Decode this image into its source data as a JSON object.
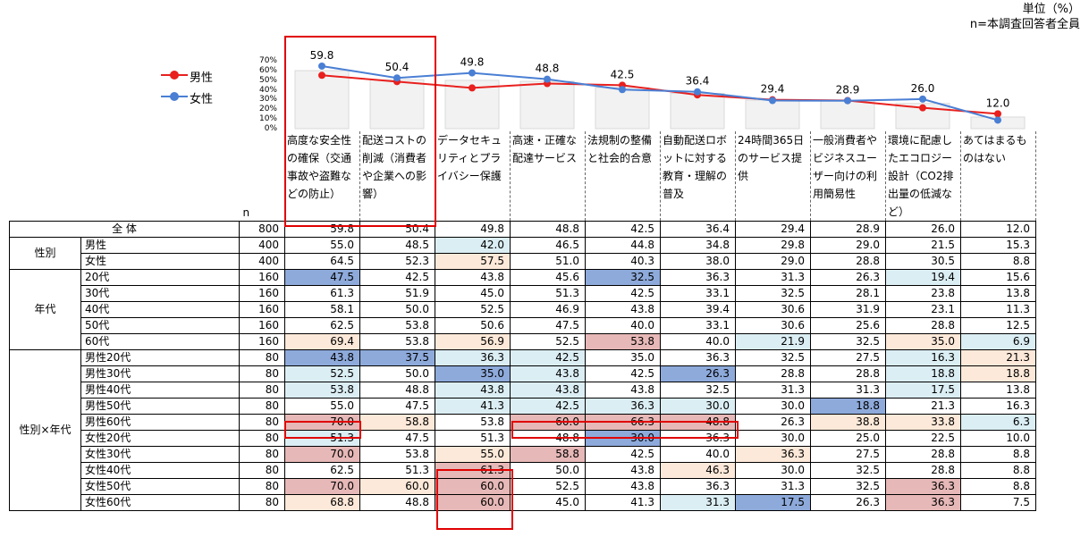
{
  "unit_note": {
    "line1": "単位（%）",
    "line2": "n=本調査回答者全員"
  },
  "legend": [
    {
      "label": "男性",
      "color": "#e8201e"
    },
    {
      "label": "女性",
      "color": "#4a7fd4"
    }
  ],
  "chart_data": {
    "type": "line",
    "yticks": [
      "70%",
      "60%",
      "50%",
      "40%",
      "30%",
      "20%",
      "10%",
      "0%"
    ],
    "ylim": [
      0,
      70
    ],
    "bar_label": "全体",
    "categories": [
      "高度な安全性の確保（交通事故や盗難などの防止）",
      "配送コストの削減（消費者や企業への影響）",
      "データセキュリティとプライバシー保護",
      "高速・正確な配達サービス",
      "法規制の整備と社会的合意",
      "自動配送ロボットに対する教育・理解の普及",
      "24時間365日のサービス提供",
      "一般消費者やビジネスユーザー向けの利用簡易性",
      "環境に配慮したエコロジー設計（CO2排出量の低減など）",
      "あてはまるものはない"
    ],
    "total_values": [
      59.8,
      50.4,
      49.8,
      48.8,
      42.5,
      36.4,
      29.4,
      28.9,
      26.0,
      12.0
    ],
    "total_labels": [
      "59.8",
      "50.4",
      "49.8",
      "48.8",
      "42.5",
      "36.4",
      "29.4",
      "28.9",
      "26.0",
      "12.0"
    ],
    "series": [
      {
        "name": "男性",
        "color": "#e8201e",
        "values": [
          55.0,
          48.5,
          42.0,
          46.5,
          44.8,
          34.8,
          29.8,
          29.0,
          21.5,
          15.3
        ]
      },
      {
        "name": "女性",
        "color": "#4a7fd4",
        "values": [
          64.5,
          52.3,
          57.5,
          51.0,
          40.3,
          38.0,
          29.0,
          28.8,
          30.5,
          8.8
        ]
      }
    ]
  },
  "table": {
    "n_header": "n",
    "headers": [
      "高度な安全性の確保（交通事故や盗難などの防止）",
      "配送コストの削減（消費者や企業への影響）",
      "データセキュリティとプライバシー保護",
      "高速・正確な配達サービス",
      "法規制の整備と社会的合意",
      "自動配送ロボットに対する教育・理解の普及",
      "24時間365日のサービス提供",
      "一般消費者やビジネスユーザー向けの利用簡易性",
      "環境に配慮したエコロジー設計（CO2排出量の低減など）",
      "あてはまるものはない"
    ],
    "colors": {
      "dark_blue": "#8eaadb",
      "light_blue": "#dbeef4",
      "dark_red": "#e6b8b7",
      "light_red": "#fde9d9"
    },
    "total": {
      "label": "全 体",
      "n": "800",
      "values": [
        "59.8",
        "50.4",
        "49.8",
        "48.8",
        "42.5",
        "36.4",
        "29.4",
        "28.9",
        "26.0",
        "12.0"
      ]
    },
    "groups": [
      {
        "label": "性別",
        "rows": [
          {
            "label": "男性",
            "n": "400",
            "values": [
              "55.0",
              "48.5",
              "42.0",
              "46.5",
              "44.8",
              "34.8",
              "29.8",
              "29.0",
              "21.5",
              "15.3"
            ],
            "shades": [
              "",
              "",
              "lb",
              "",
              "",
              "",
              "",
              "",
              "",
              ""
            ]
          },
          {
            "label": "女性",
            "n": "400",
            "values": [
              "64.5",
              "52.3",
              "57.5",
              "51.0",
              "40.3",
              "38.0",
              "29.0",
              "28.8",
              "30.5",
              "8.8"
            ],
            "shades": [
              "",
              "",
              "lr",
              "",
              "",
              "",
              "",
              "",
              "",
              ""
            ]
          }
        ]
      },
      {
        "label": "年代",
        "rows": [
          {
            "label": "20代",
            "n": "160",
            "values": [
              "47.5",
              "42.5",
              "43.8",
              "45.6",
              "32.5",
              "36.3",
              "31.3",
              "26.3",
              "19.4",
              "15.6"
            ],
            "shades": [
              "db",
              "",
              "",
              "",
              "db",
              "",
              "",
              "",
              "lb",
              ""
            ]
          },
          {
            "label": "30代",
            "n": "160",
            "values": [
              "61.3",
              "51.9",
              "45.0",
              "51.3",
              "42.5",
              "33.1",
              "32.5",
              "28.1",
              "23.8",
              "13.8"
            ],
            "shades": [
              "",
              "",
              "",
              "",
              "",
              "",
              "",
              "",
              "",
              ""
            ]
          },
          {
            "label": "40代",
            "n": "160",
            "values": [
              "58.1",
              "50.0",
              "52.5",
              "46.9",
              "43.8",
              "39.4",
              "30.6",
              "31.9",
              "23.1",
              "11.3"
            ],
            "shades": [
              "",
              "",
              "",
              "",
              "",
              "",
              "",
              "",
              "",
              ""
            ]
          },
          {
            "label": "50代",
            "n": "160",
            "values": [
              "62.5",
              "53.8",
              "50.6",
              "47.5",
              "40.0",
              "33.1",
              "30.6",
              "25.6",
              "28.8",
              "12.5"
            ],
            "shades": [
              "",
              "",
              "",
              "",
              "",
              "",
              "",
              "",
              "",
              ""
            ]
          },
          {
            "label": "60代",
            "n": "160",
            "values": [
              "69.4",
              "53.8",
              "56.9",
              "52.5",
              "53.8",
              "40.0",
              "21.9",
              "32.5",
              "35.0",
              "6.9"
            ],
            "shades": [
              "lr",
              "",
              "lr",
              "",
              "dr",
              "",
              "lb",
              "",
              "lr",
              "lb"
            ]
          }
        ]
      },
      {
        "label": "性別×年代",
        "rows": [
          {
            "label": "男性20代",
            "n": "80",
            "values": [
              "43.8",
              "37.5",
              "36.3",
              "42.5",
              "35.0",
              "36.3",
              "32.5",
              "27.5",
              "16.3",
              "21.3"
            ],
            "shades": [
              "db",
              "db",
              "lb",
              "lb",
              "",
              "",
              "",
              "",
              "lb",
              "lr"
            ]
          },
          {
            "label": "男性30代",
            "n": "80",
            "values": [
              "52.5",
              "50.0",
              "35.0",
              "43.8",
              "42.5",
              "26.3",
              "28.8",
              "28.8",
              "18.8",
              "18.8"
            ],
            "shades": [
              "lb",
              "",
              "db",
              "lb",
              "",
              "db",
              "",
              "",
              "lb",
              "lr"
            ]
          },
          {
            "label": "男性40代",
            "n": "80",
            "values": [
              "53.8",
              "48.8",
              "43.8",
              "43.8",
              "43.8",
              "32.5",
              "31.3",
              "31.3",
              "17.5",
              "13.8"
            ],
            "shades": [
              "lb",
              "",
              "lb",
              "lb",
              "",
              "",
              "",
              "",
              "lb",
              ""
            ]
          },
          {
            "label": "男性50代",
            "n": "80",
            "values": [
              "55.0",
              "47.5",
              "41.3",
              "42.5",
              "36.3",
              "30.0",
              "30.0",
              "18.8",
              "21.3",
              "16.3"
            ],
            "shades": [
              "",
              "",
              "lb",
              "lb",
              "lb",
              "lb",
              "",
              "db",
              "",
              ""
            ]
          },
          {
            "label": "男性60代",
            "n": "80",
            "values": [
              "70.0",
              "58.8",
              "53.8",
              "60.0",
              "66.3",
              "48.8",
              "26.3",
              "38.8",
              "33.8",
              "6.3"
            ],
            "shades": [
              "dr",
              "lr",
              "",
              "dr",
              "dr",
              "dr",
              "",
              "lr",
              "lr",
              "lb"
            ]
          },
          {
            "label": "女性20代",
            "n": "80",
            "values": [
              "51.3",
              "47.5",
              "51.3",
              "48.8",
              "30.0",
              "36.3",
              "30.0",
              "25.0",
              "22.5",
              "10.0"
            ],
            "shades": [
              "lb",
              "",
              "",
              "",
              "db",
              "",
              "",
              "",
              "",
              ""
            ]
          },
          {
            "label": "女性30代",
            "n": "80",
            "values": [
              "70.0",
              "53.8",
              "55.0",
              "58.8",
              "42.5",
              "40.0",
              "36.3",
              "27.5",
              "28.8",
              "8.8"
            ],
            "shades": [
              "dr",
              "",
              "lr",
              "dr",
              "",
              "",
              "lr",
              "",
              "",
              ""
            ]
          },
          {
            "label": "女性40代",
            "n": "80",
            "values": [
              "62.5",
              "51.3",
              "61.3",
              "50.0",
              "43.8",
              "46.3",
              "30.0",
              "32.5",
              "28.8",
              "8.8"
            ],
            "shades": [
              "",
              "",
              "dr",
              "",
              "",
              "lr",
              "",
              "",
              "",
              ""
            ]
          },
          {
            "label": "女性50代",
            "n": "80",
            "values": [
              "70.0",
              "60.0",
              "60.0",
              "52.5",
              "43.8",
              "36.3",
              "31.3",
              "32.5",
              "36.3",
              "8.8"
            ],
            "shades": [
              "dr",
              "lr",
              "dr",
              "",
              "",
              "",
              "",
              "",
              "dr",
              ""
            ]
          },
          {
            "label": "女性60代",
            "n": "80",
            "values": [
              "68.8",
              "48.8",
              "60.0",
              "45.0",
              "41.3",
              "31.3",
              "17.5",
              "26.3",
              "36.3",
              "7.5"
            ],
            "shades": [
              "lr",
              "",
              "dr",
              "",
              "",
              "lb",
              "db",
              "",
              "dr",
              ""
            ]
          }
        ]
      }
    ]
  }
}
